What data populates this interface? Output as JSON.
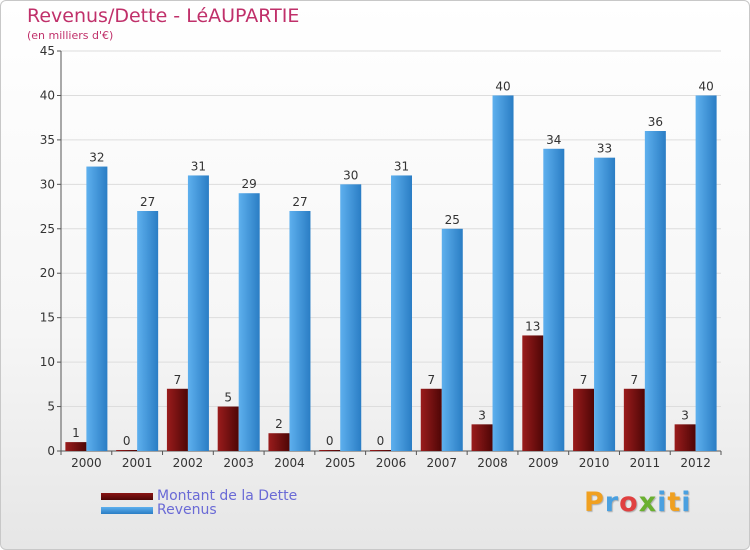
{
  "title": "Revenus/Dette - LéAUPARTIE",
  "subtitle": "(en milliers d'€)",
  "colors": {
    "title": "#c0306a",
    "dette": "#7a1010",
    "dette_dark": "#4e0606",
    "revenus": "#4da3e6",
    "revenus_dark": "#2a7dc4",
    "legend_text": "#6a6ad6",
    "grid": "#dddddd"
  },
  "chart_data": {
    "type": "bar",
    "title": "Revenus/Dette - LéAUPARTIE",
    "subtitle": "(en milliers d'€)",
    "categories": [
      "2000",
      "2001",
      "2002",
      "2003",
      "2004",
      "2005",
      "2006",
      "2007",
      "2008",
      "2009",
      "2010",
      "2011",
      "2012"
    ],
    "series": [
      {
        "name": "Montant de la Dette",
        "values": [
          1,
          0,
          7,
          5,
          2,
          0,
          0,
          7,
          3,
          13,
          7,
          7,
          3
        ]
      },
      {
        "name": "Revenus",
        "values": [
          32,
          27,
          31,
          29,
          27,
          30,
          31,
          25,
          40,
          34,
          33,
          36,
          40
        ]
      }
    ],
    "ylim": [
      0,
      45
    ],
    "yticks": [
      0,
      5,
      10,
      15,
      20,
      25,
      30,
      35,
      40,
      45
    ],
    "grid": true,
    "legend_position": "bottom-left"
  },
  "legend": {
    "items": [
      {
        "label": "Montant de la Dette",
        "color": "#7a1010"
      },
      {
        "label": "Revenus",
        "color": "#4da3e6"
      }
    ]
  },
  "logo": {
    "letters": [
      "P",
      "r",
      "o",
      "x",
      "i",
      "t",
      "i"
    ],
    "colors": [
      "#f0a020",
      "#4aa0e0",
      "#e04040",
      "#6ab030",
      "#4aa0e0",
      "#f0a020",
      "#4aa0e0"
    ]
  }
}
